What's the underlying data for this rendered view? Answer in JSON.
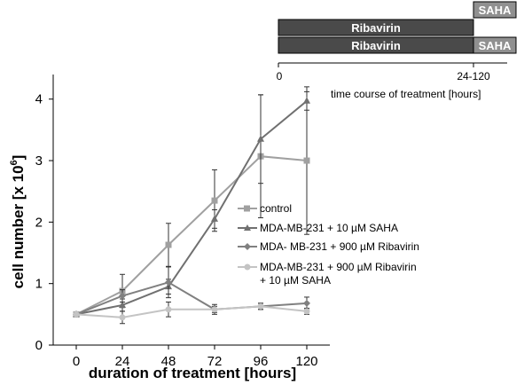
{
  "chart_data": {
    "type": "line",
    "xlabel": "duration of treatment [hours]",
    "ylabel_main": "cell number [x 10",
    "ylabel_sup": "6",
    "ylabel_close": "]",
    "x": [
      0,
      24,
      48,
      72,
      96,
      120
    ],
    "xticks": [
      "0",
      "24",
      "48",
      "72",
      "96",
      "120"
    ],
    "yticks": [
      "0",
      "1",
      "2",
      "3",
      "4"
    ],
    "ylim": [
      0,
      4.4
    ],
    "xlim": [
      -12,
      132
    ],
    "grid": false,
    "legend_position": "center-right",
    "series": [
      {
        "name": "control",
        "marker": "square",
        "color": "#a0a0a0",
        "values": [
          0.5,
          0.88,
          1.63,
          2.35,
          3.07,
          3.0
        ],
        "errors": [
          0.02,
          0.27,
          0.35,
          0.5,
          1.0,
          1.2
        ]
      },
      {
        "name": "MDA-MB-231 + 10 µM SAHA",
        "marker": "triangle",
        "color": "#707070",
        "values": [
          0.5,
          0.65,
          0.95,
          2.05,
          3.35,
          3.97
        ],
        "errors": [
          0.02,
          0.1,
          0.12,
          0.15,
          0.72,
          0.15
        ]
      },
      {
        "name": "MDA- MB-231 + 900 µM Ribavirin",
        "marker": "diamond",
        "color": "#808080",
        "values": [
          0.5,
          0.8,
          1.02,
          0.58,
          0.63,
          0.68
        ],
        "errors": [
          0.02,
          0.1,
          0.25,
          0.08,
          0.05,
          0.1
        ]
      },
      {
        "name_line1": "MDA-MB-231 + 900 µM Ribavirin",
        "name_line2": "+ 10 µM SAHA",
        "marker": "circle",
        "color": "#c4c4c4",
        "values": [
          0.5,
          0.45,
          0.58,
          0.58,
          0.63,
          0.55
        ],
        "errors": [
          0.02,
          0.1,
          0.12,
          0.05,
          0.05,
          0.05
        ]
      }
    ]
  },
  "schedule": {
    "rows": [
      {
        "bars": [
          {
            "label": "SAHA",
            "start": 24,
            "end": 120,
            "color": "#909090"
          }
        ]
      },
      {
        "bars": [
          {
            "label": "Ribavirin",
            "start": 0,
            "end": 24,
            "color": "#4a4a4a"
          }
        ]
      },
      {
        "bars": [
          {
            "label": "Ribavirin",
            "start": 0,
            "end": 24,
            "color": "#4a4a4a"
          },
          {
            "label": "SAHA",
            "start": 24,
            "end": 120,
            "color": "#909090"
          }
        ]
      }
    ],
    "tick_start": "0",
    "tick_end": "24-120",
    "axis_label": "time course of treatment [hours]"
  }
}
